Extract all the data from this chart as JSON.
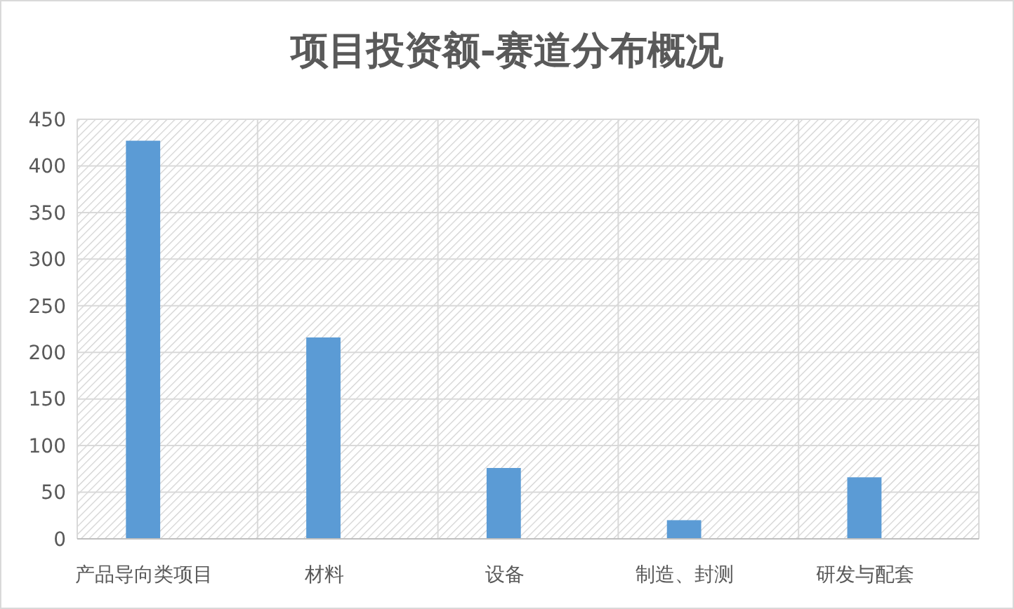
{
  "chart_data": {
    "type": "bar",
    "title": "项目投资额-赛道分布概况",
    "categories": [
      "产品导向类项目",
      "材料",
      "设备",
      "制造、封测",
      "研发与配套"
    ],
    "values": [
      427,
      216,
      76,
      20,
      66
    ],
    "color": "#5b9bd5",
    "ylim": [
      0,
      450
    ],
    "yticks": [
      0,
      50,
      100,
      150,
      200,
      250,
      300,
      350,
      400,
      450
    ],
    "grid": true
  }
}
